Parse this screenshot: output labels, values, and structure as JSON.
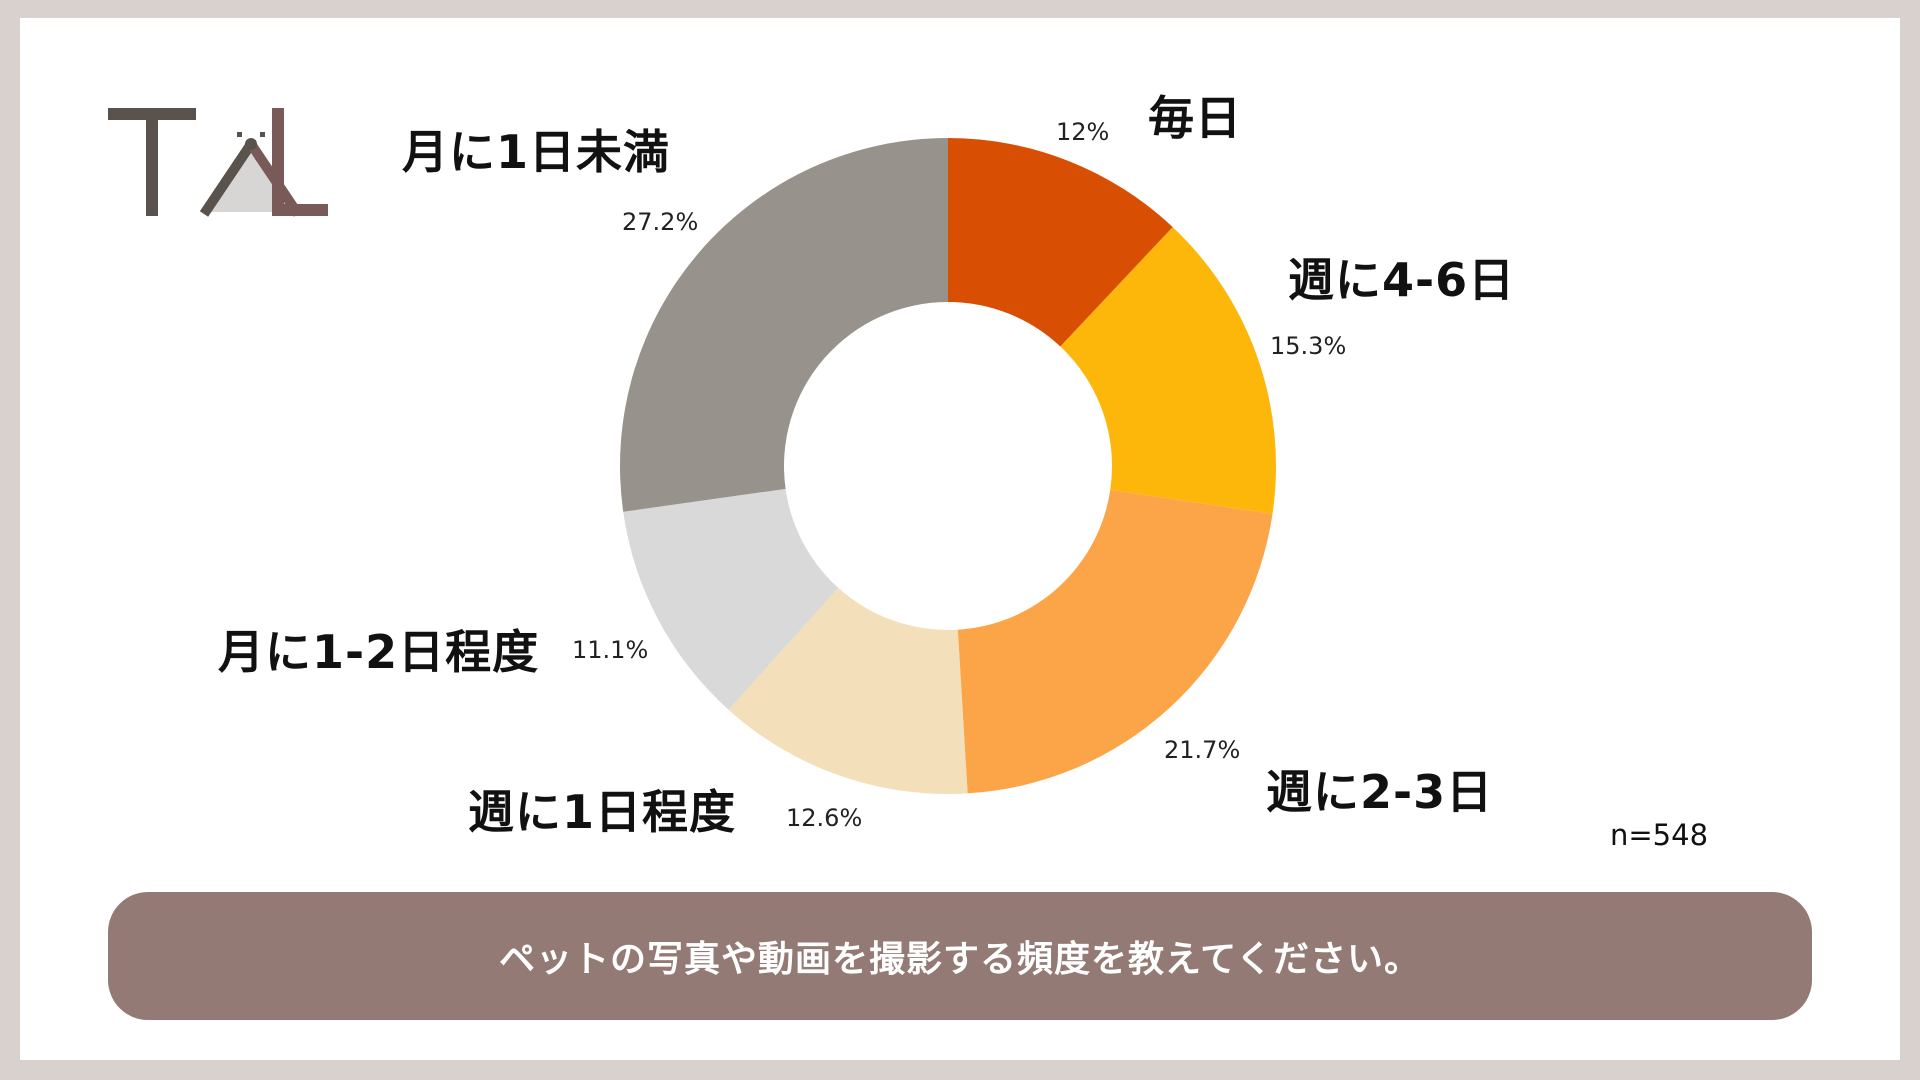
{
  "logo": {
    "text": "TAL"
  },
  "chart_data": {
    "type": "pie",
    "variant": "donut",
    "categories": [
      "毎日",
      "週に4-6日",
      "週に2-3日",
      "週に1日程度",
      "月に1-2日程度",
      "月に1日未満"
    ],
    "values": [
      12,
      15.3,
      21.7,
      12.6,
      11.1,
      27.2
    ],
    "value_labels": [
      "12%",
      "15.3%",
      "21.7%",
      "12.6%",
      "11.1%",
      "27.2%"
    ],
    "colors": [
      "#d84e02",
      "#fdb70b",
      "#fba548",
      "#f3e0bb",
      "#d9d9d9",
      "#97938c"
    ],
    "sample_size": "n=548",
    "question": "ペットの写真や動画を撮影する頻度を教えてください。",
    "legend": "none"
  }
}
